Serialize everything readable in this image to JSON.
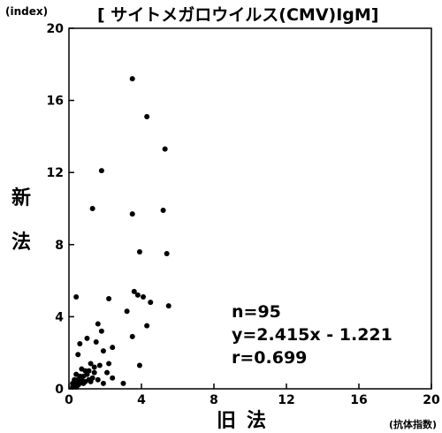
{
  "chart_data": {
    "type": "scatter",
    "title": "[ サイトメガロウイルス(CMV)IgM]",
    "y_unit": "(index)",
    "x_unit": "(抗体指数)",
    "ylabel": "新法",
    "xlabel": "旧法",
    "xlim": [
      0,
      20
    ],
    "ylim": [
      0,
      20
    ],
    "xticks": [
      0,
      4,
      8,
      12,
      16,
      20
    ],
    "yticks": [
      0,
      4,
      8,
      12,
      16,
      20
    ],
    "grid": false,
    "annotations": [
      "n=95",
      "y=2.415x - 1.221",
      "r=0.699"
    ],
    "points": [
      [
        3.5,
        17.2
      ],
      [
        4.3,
        15.1
      ],
      [
        5.3,
        13.3
      ],
      [
        1.8,
        12.1
      ],
      [
        1.3,
        10.0
      ],
      [
        3.5,
        9.7
      ],
      [
        5.2,
        9.9
      ],
      [
        3.9,
        7.6
      ],
      [
        5.4,
        7.5
      ],
      [
        0.4,
        5.1
      ],
      [
        2.2,
        5.0
      ],
      [
        3.6,
        5.4
      ],
      [
        3.8,
        5.2
      ],
      [
        4.1,
        5.1
      ],
      [
        4.5,
        4.8
      ],
      [
        5.5,
        4.6
      ],
      [
        3.2,
        4.3
      ],
      [
        1.6,
        3.6
      ],
      [
        4.3,
        3.5
      ],
      [
        1.8,
        3.2
      ],
      [
        1.0,
        2.8
      ],
      [
        3.5,
        2.9
      ],
      [
        0.6,
        2.5
      ],
      [
        1.5,
        2.6
      ],
      [
        2.4,
        2.3
      ],
      [
        0.5,
        1.9
      ],
      [
        1.9,
        2.1
      ],
      [
        3.9,
        1.3
      ],
      [
        1.2,
        1.4
      ],
      [
        1.4,
        1.2
      ],
      [
        1.7,
        1.3
      ],
      [
        2.2,
        1.4
      ],
      [
        0.7,
        1.1
      ],
      [
        0.9,
        1.0
      ],
      [
        1.1,
        1.0
      ],
      [
        1.4,
        0.9
      ],
      [
        2.1,
        0.9
      ],
      [
        0.4,
        0.8
      ],
      [
        0.6,
        0.7
      ],
      [
        0.8,
        0.7
      ],
      [
        1.0,
        0.8
      ],
      [
        1.3,
        0.6
      ],
      [
        1.6,
        0.5
      ],
      [
        2.4,
        0.6
      ],
      [
        0.3,
        0.5
      ],
      [
        0.5,
        0.5
      ],
      [
        0.7,
        0.5
      ],
      [
        0.9,
        0.4
      ],
      [
        1.1,
        0.5
      ],
      [
        1.9,
        0.3
      ],
      [
        3.0,
        0.3
      ],
      [
        0.2,
        0.3
      ],
      [
        0.4,
        0.3
      ],
      [
        0.6,
        0.3
      ],
      [
        0.8,
        0.3
      ],
      [
        1.2,
        0.4
      ],
      [
        0.3,
        0.2
      ],
      [
        0.5,
        0.2
      ],
      [
        0.2,
        0.1
      ],
      [
        0.4,
        0.1
      ]
    ]
  }
}
